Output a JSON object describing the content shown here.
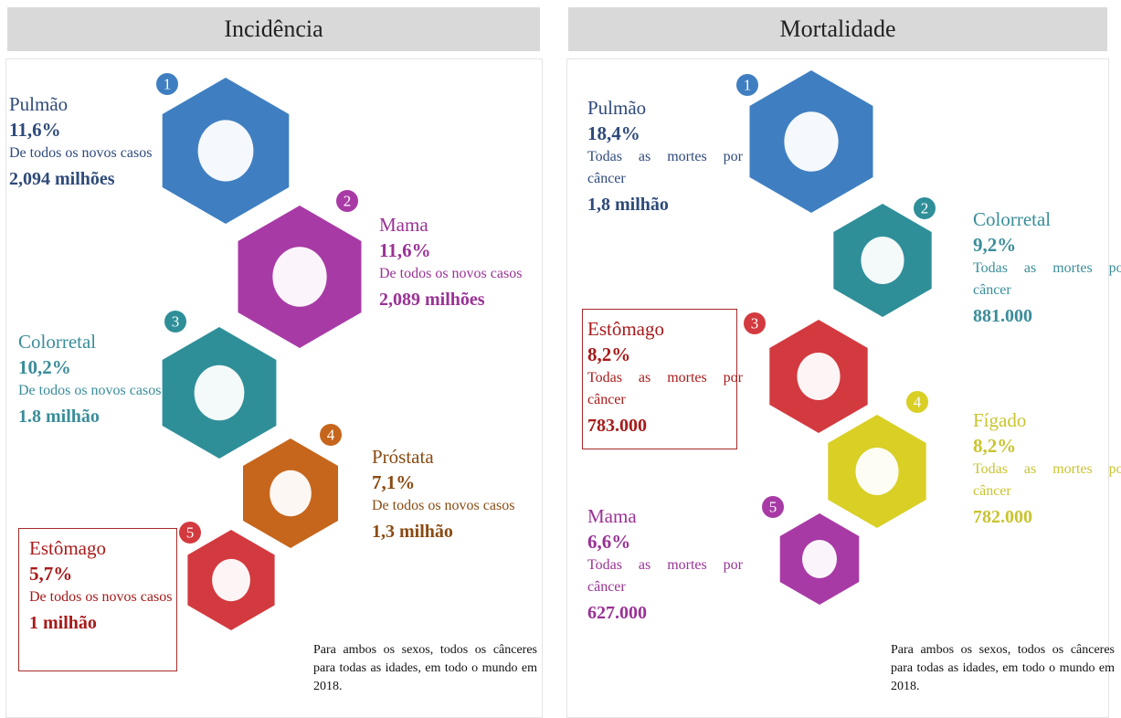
{
  "panels": [
    {
      "title": "Incidência",
      "items": [
        {
          "rank": 1,
          "name": "Pulmão",
          "percent": "11,6%",
          "description": "De todos os novos casos",
          "count": "2,094 milhões"
        },
        {
          "rank": 2,
          "name": "Mama",
          "percent": "11,6%",
          "description": "De todos os novos casos",
          "count": "2,089 milhões"
        },
        {
          "rank": 3,
          "name": "Colorretal",
          "percent": "10,2%",
          "description": "De todos os novos casos",
          "count": "1.8 milhão"
        },
        {
          "rank": 4,
          "name": "Próstata",
          "percent": "7,1%",
          "description": "De todos os novos casos",
          "count": "1,3 milhão"
        },
        {
          "rank": 5,
          "name": "Estômago",
          "percent": "5,7%",
          "description": "De todos os novos casos",
          "count": "1 milhão"
        }
      ],
      "footnote": "Para ambos os sexos, todos os cânceres para todas as idades, em todo o mundo em 2018."
    },
    {
      "title": "Mortalidade",
      "items": [
        {
          "rank": 1,
          "name": "Pulmão",
          "percent": "18,4%",
          "description": "Todas as mortes por câncer",
          "count": "1,8 milhão"
        },
        {
          "rank": 2,
          "name": "Colorretal",
          "percent": "9,2%",
          "description": "Todas as mortes por câncer",
          "count": "881.000"
        },
        {
          "rank": 3,
          "name": "Estômago",
          "percent": "8,2%",
          "description": "Todas as mortes por câncer",
          "count": "783.000"
        },
        {
          "rank": 4,
          "name": "Fígado",
          "percent": "8,2%",
          "description": "Todas as mortes por câncer",
          "count": "782.000"
        },
        {
          "rank": 5,
          "name": "Mama",
          "percent": "6,6%",
          "description": "Todas as mortes por câncer",
          "count": "627.000"
        }
      ],
      "footnote": "Para ambos os sexos, todos os cânceres para todas as idades, em todo o mundo em 2018."
    }
  ]
}
